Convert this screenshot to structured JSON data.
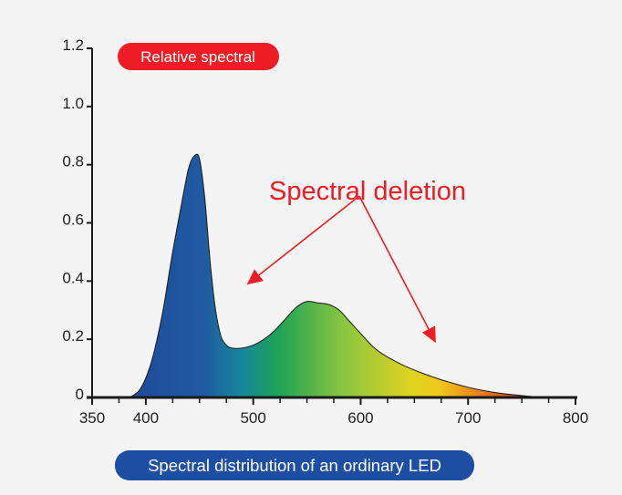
{
  "colors": {
    "background": "#f4f4f4",
    "axis": "#1a1a1a",
    "curve_outline": "#1a1a1a",
    "badge_red": "#ee1c24",
    "badge_blue": "#1e4ea1",
    "annotation_red": "#ee1c24",
    "spectrum_gradient": [
      "#1d4a9c",
      "#1f5aa0",
      "#16869c",
      "#1fa356",
      "#8cc63f",
      "#dfd320",
      "#f0c81a",
      "#e5731e",
      "#c2271c"
    ]
  },
  "chart_data": {
    "type": "area",
    "title": "Relative spectral",
    "caption": "Spectral distribution of an ordinary LED",
    "xlabel": "",
    "ylabel": "Relative spectral",
    "xlim": [
      350,
      800
    ],
    "ylim": [
      0,
      1.2
    ],
    "grid": false,
    "x_ticks": [
      350,
      400,
      500,
      600,
      700,
      800
    ],
    "x_tick_labels": [
      "350",
      "400",
      "500",
      "600",
      "700",
      "800"
    ],
    "x_minor_step": 25,
    "y_ticks": [
      0,
      0.2,
      0.4,
      0.6,
      0.8,
      1.0,
      1.2
    ],
    "y_tick_labels": [
      "0",
      "0.2",
      "0.4",
      "0.6",
      "0.8",
      "1.0",
      "1.2"
    ],
    "series": [
      {
        "x": [
          385,
          395,
          405,
          415,
          425,
          435,
          440,
          445,
          450,
          455,
          460,
          465,
          470,
          475,
          480,
          490,
          500,
          510,
          520,
          530,
          540,
          550,
          560,
          570,
          580,
          590,
          600,
          610,
          620,
          640,
          660,
          680,
          700,
          720,
          740,
          760,
          770
        ],
        "values": [
          0.0,
          0.03,
          0.12,
          0.28,
          0.5,
          0.7,
          0.79,
          0.83,
          0.82,
          0.68,
          0.46,
          0.3,
          0.21,
          0.18,
          0.17,
          0.17,
          0.18,
          0.2,
          0.23,
          0.27,
          0.31,
          0.33,
          0.325,
          0.32,
          0.3,
          0.26,
          0.22,
          0.18,
          0.15,
          0.11,
          0.08,
          0.055,
          0.035,
          0.02,
          0.01,
          0.003,
          0.0
        ]
      }
    ],
    "annotations": [
      {
        "text": "Spectral deletion",
        "arrows_to": [
          [
            494,
            0.4
          ],
          [
            670,
            0.2
          ]
        ]
      }
    ]
  }
}
